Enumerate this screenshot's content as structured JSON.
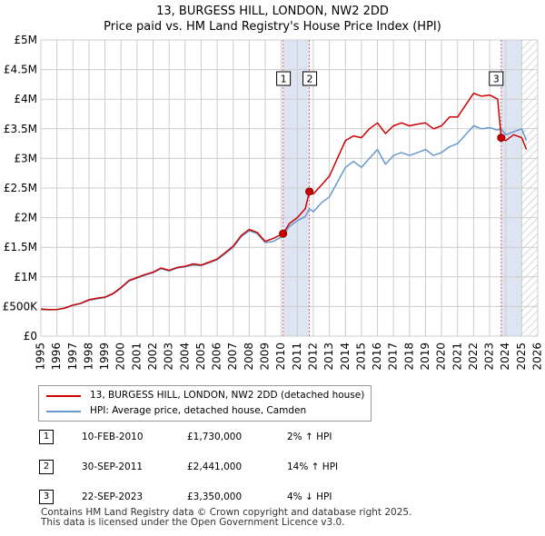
{
  "title_line1": "13, BURGESS HILL, LONDON, NW2 2DD",
  "title_line2": "Price paid vs. HM Land Registry's House Price Index (HPI)",
  "chart_data": {
    "type": "line",
    "xlim": [
      1995,
      2026
    ],
    "ylim": [
      0,
      5000000
    ],
    "x_ticks": [
      "1995",
      "1996",
      "1997",
      "1998",
      "1999",
      "2000",
      "2001",
      "2002",
      "2003",
      "2004",
      "2005",
      "2006",
      "2007",
      "2008",
      "2009",
      "2010",
      "2011",
      "2012",
      "2013",
      "2014",
      "2015",
      "2016",
      "2017",
      "2018",
      "2019",
      "2020",
      "2021",
      "2022",
      "2023",
      "2024",
      "2025",
      "2026"
    ],
    "y_ticks": [
      {
        "value": 0,
        "label": "£0"
      },
      {
        "value": 500000,
        "label": "£500K"
      },
      {
        "value": 1000000,
        "label": "£1M"
      },
      {
        "value": 1500000,
        "label": "£1.5M"
      },
      {
        "value": 2000000,
        "label": "£2M"
      },
      {
        "value": 2500000,
        "label": "£2.5M"
      },
      {
        "value": 3000000,
        "label": "£3M"
      },
      {
        "value": 3500000,
        "label": "£3.5M"
      },
      {
        "value": 4000000,
        "label": "£4M"
      },
      {
        "value": 4500000,
        "label": "£4.5M"
      },
      {
        "value": 5000000,
        "label": "£5M"
      }
    ],
    "grid": true,
    "shaded_periods": [
      {
        "from": 2010.11,
        "to": 2011.75
      },
      {
        "from": 2023.72,
        "to": 2025.0
      }
    ],
    "hatched_period": {
      "from": 2025.0,
      "to": 2026
    }
  },
  "series": [
    {
      "name": "13, BURGESS HILL, LONDON, NW2 2DD (detached house)",
      "color": "#cc0000",
      "points": [
        [
          1995.0,
          455000
        ],
        [
          1995.5,
          448000
        ],
        [
          1996.0,
          450000
        ],
        [
          1996.5,
          475000
        ],
        [
          1997.0,
          525000
        ],
        [
          1997.5,
          555000
        ],
        [
          1998.0,
          615000
        ],
        [
          1998.5,
          640000
        ],
        [
          1999.0,
          660000
        ],
        [
          1999.5,
          720000
        ],
        [
          2000.0,
          820000
        ],
        [
          2000.5,
          940000
        ],
        [
          2001.0,
          990000
        ],
        [
          2001.5,
          1040000
        ],
        [
          2002.0,
          1080000
        ],
        [
          2002.5,
          1150000
        ],
        [
          2003.0,
          1110000
        ],
        [
          2003.5,
          1160000
        ],
        [
          2004.0,
          1180000
        ],
        [
          2004.5,
          1220000
        ],
        [
          2005.0,
          1200000
        ],
        [
          2005.5,
          1250000
        ],
        [
          2006.0,
          1300000
        ],
        [
          2006.5,
          1410000
        ],
        [
          2007.0,
          1520000
        ],
        [
          2007.5,
          1700000
        ],
        [
          2008.0,
          1800000
        ],
        [
          2008.5,
          1750000
        ],
        [
          2009.0,
          1600000
        ],
        [
          2009.5,
          1650000
        ],
        [
          2010.11,
          1730000
        ],
        [
          2010.5,
          1900000
        ],
        [
          2011.0,
          2000000
        ],
        [
          2011.5,
          2150000
        ],
        [
          2011.75,
          2441000
        ],
        [
          2012.0,
          2400000
        ],
        [
          2012.5,
          2550000
        ],
        [
          2013.0,
          2700000
        ],
        [
          2013.5,
          3000000
        ],
        [
          2014.0,
          3300000
        ],
        [
          2014.5,
          3380000
        ],
        [
          2015.0,
          3350000
        ],
        [
          2015.5,
          3500000
        ],
        [
          2016.0,
          3600000
        ],
        [
          2016.5,
          3420000
        ],
        [
          2017.0,
          3550000
        ],
        [
          2017.5,
          3600000
        ],
        [
          2018.0,
          3550000
        ],
        [
          2018.5,
          3580000
        ],
        [
          2019.0,
          3600000
        ],
        [
          2019.5,
          3500000
        ],
        [
          2020.0,
          3550000
        ],
        [
          2020.5,
          3700000
        ],
        [
          2021.0,
          3700000
        ],
        [
          2021.5,
          3900000
        ],
        [
          2022.0,
          4100000
        ],
        [
          2022.5,
          4050000
        ],
        [
          2023.0,
          4070000
        ],
        [
          2023.5,
          4000000
        ],
        [
          2023.72,
          3350000
        ],
        [
          2024.0,
          3300000
        ],
        [
          2024.5,
          3400000
        ],
        [
          2025.0,
          3350000
        ],
        [
          2025.3,
          3150000
        ]
      ]
    },
    {
      "name": "HPI: Average price, detached house, Camden",
      "color": "#6699cc",
      "points": [
        [
          1995.0,
          450000
        ],
        [
          1995.5,
          445000
        ],
        [
          1996.0,
          448000
        ],
        [
          1996.5,
          470000
        ],
        [
          1997.0,
          520000
        ],
        [
          1997.5,
          550000
        ],
        [
          1998.0,
          605000
        ],
        [
          1998.5,
          630000
        ],
        [
          1999.0,
          650000
        ],
        [
          1999.5,
          710000
        ],
        [
          2000.0,
          810000
        ],
        [
          2000.5,
          930000
        ],
        [
          2001.0,
          980000
        ],
        [
          2001.5,
          1030000
        ],
        [
          2002.0,
          1070000
        ],
        [
          2002.5,
          1140000
        ],
        [
          2003.0,
          1100000
        ],
        [
          2003.5,
          1150000
        ],
        [
          2004.0,
          1170000
        ],
        [
          2004.5,
          1200000
        ],
        [
          2005.0,
          1190000
        ],
        [
          2005.5,
          1240000
        ],
        [
          2006.0,
          1290000
        ],
        [
          2006.5,
          1390000
        ],
        [
          2007.0,
          1500000
        ],
        [
          2007.5,
          1680000
        ],
        [
          2008.0,
          1780000
        ],
        [
          2008.5,
          1730000
        ],
        [
          2009.0,
          1580000
        ],
        [
          2009.5,
          1600000
        ],
        [
          2010.11,
          1690000
        ],
        [
          2010.5,
          1850000
        ],
        [
          2011.0,
          1950000
        ],
        [
          2011.5,
          2020000
        ],
        [
          2011.75,
          2150000
        ],
        [
          2012.0,
          2100000
        ],
        [
          2012.5,
          2250000
        ],
        [
          2013.0,
          2350000
        ],
        [
          2013.5,
          2600000
        ],
        [
          2014.0,
          2850000
        ],
        [
          2014.5,
          2950000
        ],
        [
          2015.0,
          2850000
        ],
        [
          2015.5,
          3000000
        ],
        [
          2016.0,
          3150000
        ],
        [
          2016.5,
          2900000
        ],
        [
          2017.0,
          3050000
        ],
        [
          2017.5,
          3100000
        ],
        [
          2018.0,
          3050000
        ],
        [
          2018.5,
          3100000
        ],
        [
          2019.0,
          3150000
        ],
        [
          2019.5,
          3050000
        ],
        [
          2020.0,
          3100000
        ],
        [
          2020.5,
          3200000
        ],
        [
          2021.0,
          3250000
        ],
        [
          2021.5,
          3400000
        ],
        [
          2022.0,
          3550000
        ],
        [
          2022.5,
          3500000
        ],
        [
          2023.0,
          3520000
        ],
        [
          2023.5,
          3480000
        ],
        [
          2023.72,
          3500000
        ],
        [
          2024.0,
          3400000
        ],
        [
          2024.5,
          3450000
        ],
        [
          2025.0,
          3500000
        ],
        [
          2025.3,
          3300000
        ]
      ]
    }
  ],
  "markers": [
    {
      "label": "1",
      "x": 2010.11,
      "y": 1730000
    },
    {
      "label": "2",
      "x": 2011.75,
      "y": 2441000
    },
    {
      "label": "3",
      "x": 2023.72,
      "y": 3350000
    }
  ],
  "legend": {
    "red_label": "13, BURGESS HILL, LONDON, NW2 2DD (detached house)",
    "blue_label": "HPI: Average price, detached house, Camden"
  },
  "sales": [
    {
      "num": "1",
      "date": "10-FEB-2010",
      "price": "£1,730,000",
      "hpi": "2% ↑ HPI"
    },
    {
      "num": "2",
      "date": "30-SEP-2011",
      "price": "£2,441,000",
      "hpi": "14% ↑ HPI"
    },
    {
      "num": "3",
      "date": "22-SEP-2023",
      "price": "£3,350,000",
      "hpi": "4% ↓ HPI"
    }
  ],
  "footer_line1": "Contains HM Land Registry data © Crown copyright and database right 2025.",
  "footer_line2": "This data is licensed under the Open Government Licence v3.0."
}
